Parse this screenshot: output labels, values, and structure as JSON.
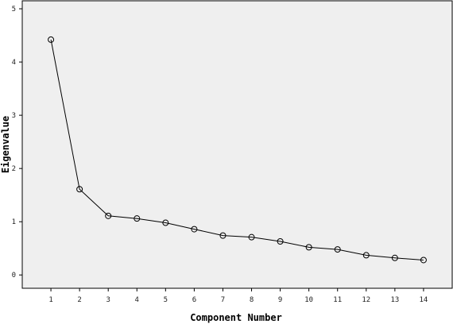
{
  "chart_data": {
    "type": "line",
    "xlabel": "Component Number",
    "ylabel": "Eigenvalue",
    "x": [
      1,
      2,
      3,
      4,
      5,
      6,
      7,
      8,
      9,
      10,
      11,
      12,
      13,
      14
    ],
    "values": [
      4.42,
      1.61,
      1.11,
      1.06,
      0.98,
      0.86,
      0.74,
      0.71,
      0.63,
      0.52,
      0.48,
      0.37,
      0.32,
      0.28
    ],
    "x_ticks": [
      "1",
      "2",
      "3",
      "4",
      "5",
      "6",
      "7",
      "8",
      "9",
      "10",
      "11",
      "12",
      "13",
      "14"
    ],
    "y_ticks": [
      "0",
      "1",
      "2",
      "3",
      "4",
      "5"
    ],
    "xlim": [
      0,
      15
    ],
    "ylim": [
      -0.25,
      5.15
    ],
    "grid": false,
    "marker": "circle",
    "colors": {
      "plot_background": "#efefef",
      "line": "#000000",
      "frame": "#000000"
    }
  }
}
